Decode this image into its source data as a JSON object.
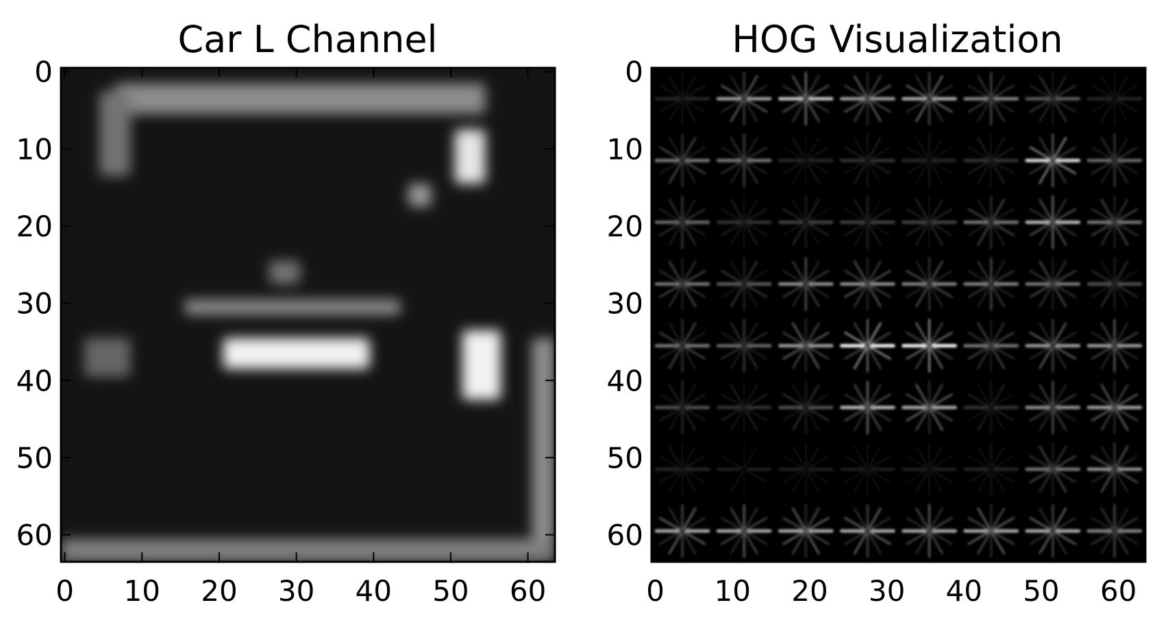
{
  "chart_data": [
    {
      "type": "heatmap",
      "title": "Car L Channel",
      "xlabel": "",
      "ylabel": "",
      "xlim": [
        -0.5,
        63.5
      ],
      "ylim": [
        63.5,
        -0.5
      ],
      "xticks": [
        0,
        10,
        20,
        30,
        40,
        50,
        60
      ],
      "yticks": [
        0,
        10,
        20,
        30,
        40,
        50,
        60
      ],
      "grid": false,
      "colormap": "gray",
      "image": {
        "width": 64,
        "height": 64,
        "background": 0.08,
        "bright_regions": [
          {
            "label": "roof edge",
            "x": [
              7,
              55
            ],
            "y": [
              2,
              6
            ],
            "value": 0.55
          },
          {
            "label": "left pillar",
            "x": [
              5,
              9
            ],
            "y": [
              3,
              14
            ],
            "value": 0.45
          },
          {
            "label": "right tail light upper",
            "x": [
              51,
              55
            ],
            "y": [
              8,
              15
            ],
            "value": 0.9
          },
          {
            "label": "small light",
            "x": [
              45,
              48
            ],
            "y": [
              15,
              18
            ],
            "value": 0.6
          },
          {
            "label": "center reflection",
            "x": [
              27,
              31
            ],
            "y": [
              25,
              28
            ],
            "value": 0.45
          },
          {
            "label": "upper bumper line",
            "x": [
              16,
              44
            ],
            "y": [
              30,
              32
            ],
            "value": 0.55
          },
          {
            "label": "license plate",
            "x": [
              21,
              40
            ],
            "y": [
              35,
              39
            ],
            "value": 0.95
          },
          {
            "label": "right tail light lower",
            "x": [
              52,
              57
            ],
            "y": [
              34,
              43
            ],
            "value": 0.95
          },
          {
            "label": "left tail light",
            "x": [
              3,
              9
            ],
            "y": [
              35,
              40
            ],
            "value": 0.4
          },
          {
            "label": "right edge",
            "x": [
              61,
              64
            ],
            "y": [
              35,
              62
            ],
            "value": 0.55
          },
          {
            "label": "ground strip",
            "x": [
              0,
              64
            ],
            "y": [
              61,
              64
            ],
            "value": 0.5
          }
        ]
      }
    },
    {
      "type": "heatmap",
      "title": "HOG Visualization",
      "xlabel": "",
      "ylabel": "",
      "xlim": [
        -0.5,
        63.5
      ],
      "ylim": [
        63.5,
        -0.5
      ],
      "xticks": [
        0,
        10,
        20,
        30,
        40,
        50,
        60
      ],
      "yticks": [
        0,
        10,
        20,
        30,
        40,
        50,
        60
      ],
      "grid": false,
      "colormap": "gray",
      "cell_size": 8,
      "cells": [
        [
          0.15,
          0.6,
          0.75,
          0.6,
          0.65,
          0.5,
          0.35,
          0.15
        ],
        [
          0.45,
          0.45,
          0.15,
          0.2,
          0.15,
          0.2,
          0.85,
          0.4
        ],
        [
          0.4,
          0.2,
          0.25,
          0.25,
          0.25,
          0.45,
          0.7,
          0.45
        ],
        [
          0.45,
          0.35,
          0.55,
          0.55,
          0.5,
          0.5,
          0.45,
          0.3
        ],
        [
          0.45,
          0.4,
          0.6,
          0.95,
          0.95,
          0.45,
          0.6,
          0.6
        ],
        [
          0.3,
          0.2,
          0.3,
          0.7,
          0.65,
          0.2,
          0.55,
          0.6
        ],
        [
          0.15,
          0.1,
          0.12,
          0.12,
          0.12,
          0.15,
          0.45,
          0.55
        ],
        [
          0.65,
          0.65,
          0.65,
          0.65,
          0.65,
          0.65,
          0.65,
          0.5
        ]
      ]
    }
  ],
  "colors": {
    "background": "#ffffff",
    "axes_frame": "#000000",
    "text": "#000000"
  }
}
